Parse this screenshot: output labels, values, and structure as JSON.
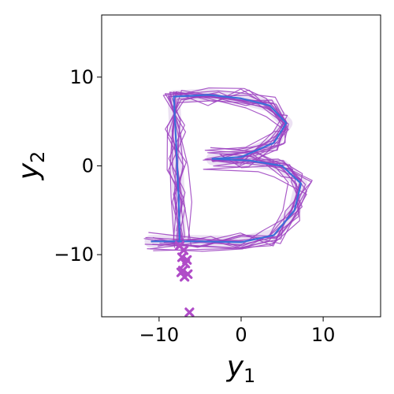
{
  "chart_data": {
    "type": "line",
    "title": "",
    "xlabel": "y",
    "xlabel_sub": "1",
    "ylabel": "y",
    "ylabel_sub": "2",
    "xlim": [
      -17,
      17
    ],
    "ylim": [
      -17,
      17
    ],
    "xticks": [
      -10,
      0,
      10
    ],
    "yticks": [
      -10,
      0,
      10
    ],
    "xtick_labels": [
      "−10",
      "0",
      "10"
    ],
    "ytick_labels": [
      "−10",
      "0",
      "10"
    ],
    "grid": false,
    "legend": "none",
    "colors": {
      "trajectories": "#9b3fc0",
      "endpoints": "#b04cc8",
      "mean_path": "#3a6fd8",
      "band": "#c9a8dd"
    },
    "mean_path": [
      [
        -7.5,
        -8.5
      ],
      [
        -7.6,
        -4.0
      ],
      [
        -7.8,
        0.0
      ],
      [
        -8.0,
        4.0
      ],
      [
        -8.2,
        7.8
      ],
      [
        -4.0,
        8.0
      ],
      [
        0.0,
        7.6
      ],
      [
        3.5,
        6.8
      ],
      [
        5.5,
        4.8
      ],
      [
        4.0,
        2.6
      ],
      [
        0.0,
        1.0
      ],
      [
        -3.5,
        0.8
      ],
      [
        1.0,
        0.6
      ],
      [
        5.0,
        0.0
      ],
      [
        7.3,
        -2.0
      ],
      [
        6.5,
        -5.0
      ],
      [
        4.0,
        -7.8
      ],
      [
        0.0,
        -8.6
      ],
      [
        -5.0,
        -8.5
      ],
      [
        -11.0,
        -8.5
      ]
    ],
    "trajectory_scatter": [
      [
        0.4,
        0.5
      ],
      [
        -0.3,
        -0.2
      ],
      [
        0.8,
        0.3
      ],
      [
        -0.6,
        0.6
      ],
      [
        0.2,
        -0.5
      ],
      [
        -0.9,
        -0.4
      ],
      [
        0.6,
        -0.7
      ],
      [
        -0.2,
        0.9
      ],
      [
        1.0,
        -0.1
      ],
      [
        -0.5,
        0.2
      ],
      [
        0.3,
        0.8
      ],
      [
        -0.8,
        -0.8
      ],
      [
        0.7,
        0.9
      ],
      [
        -0.4,
        -0.9
      ]
    ],
    "endpoints": [
      [
        -7.0,
        -9.5
      ],
      [
        -7.2,
        -10.3
      ],
      [
        -6.8,
        -11.0
      ],
      [
        -7.1,
        -11.8
      ],
      [
        -6.5,
        -12.2
      ],
      [
        -7.3,
        -12.0
      ],
      [
        -6.6,
        -10.6
      ],
      [
        -7.5,
        -9.0
      ],
      [
        -6.9,
        -12.5
      ],
      [
        -6.3,
        -16.5
      ]
    ]
  }
}
